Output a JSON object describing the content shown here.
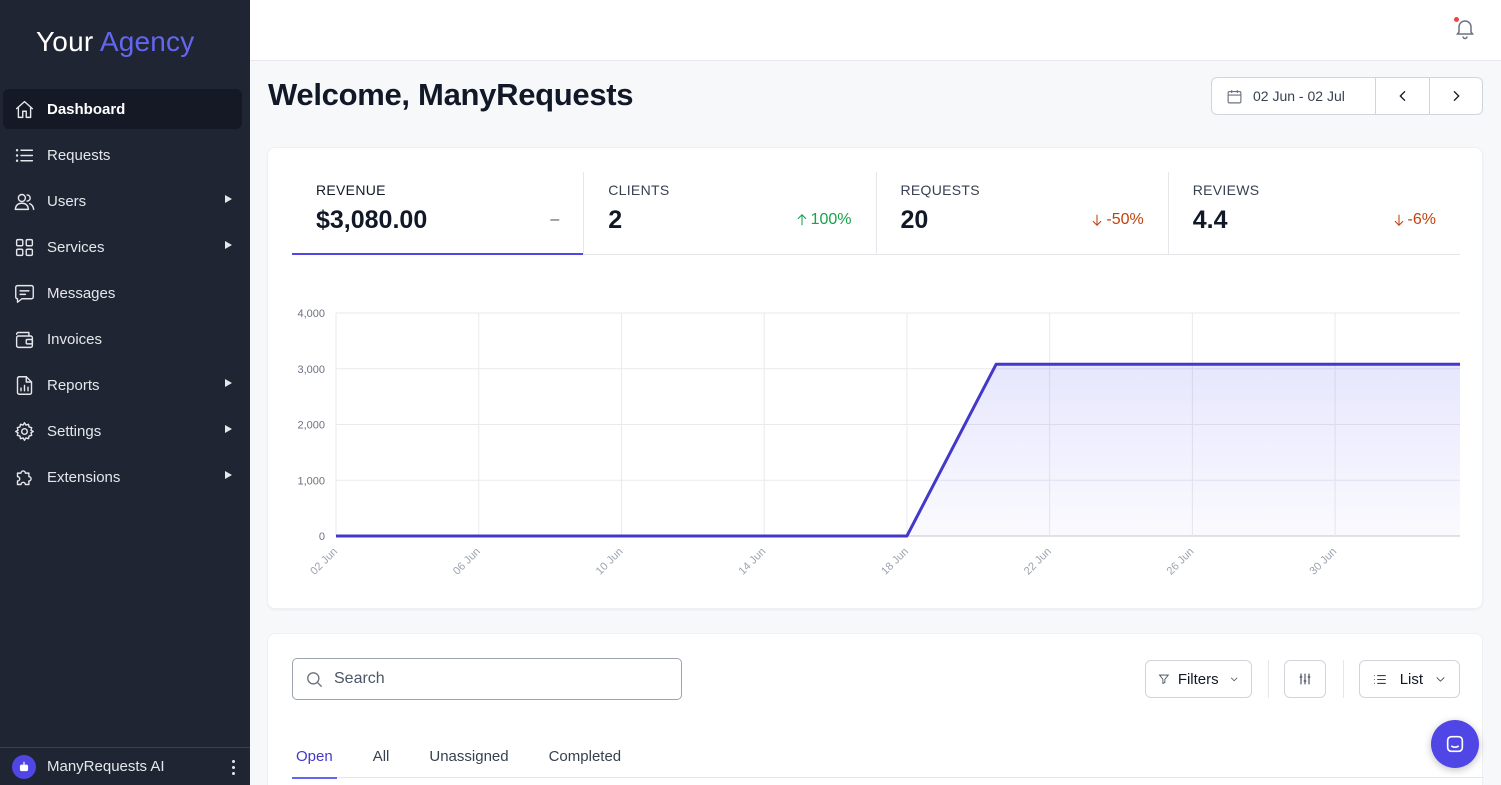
{
  "brand": {
    "word1": "Your",
    "word2": "Agency"
  },
  "sidebar": {
    "items": [
      {
        "label": "Dashboard",
        "icon": "home-icon",
        "active": true
      },
      {
        "label": "Requests",
        "icon": "list-icon"
      },
      {
        "label": "Users",
        "icon": "users-icon",
        "expandable": true
      },
      {
        "label": "Services",
        "icon": "grid-icon",
        "expandable": true
      },
      {
        "label": "Messages",
        "icon": "chat-icon"
      },
      {
        "label": "Invoices",
        "icon": "wallet-icon"
      },
      {
        "label": "Reports",
        "icon": "report-icon",
        "expandable": true
      },
      {
        "label": "Settings",
        "icon": "gear-icon",
        "expandable": true
      },
      {
        "label": "Extensions",
        "icon": "puzzle-icon",
        "expandable": true
      }
    ],
    "footer": {
      "label": "ManyRequests AI",
      "icon": "robot-icon"
    }
  },
  "topbar": {
    "notification_icon": "bell-icon",
    "has_unread": true
  },
  "page": {
    "title": "Welcome, ManyRequests"
  },
  "date_range": {
    "label": "02 Jun - 02 Jul"
  },
  "kpis": [
    {
      "label": "REVENUE",
      "value": "$3,080.00",
      "change": "–",
      "trend": "flat",
      "active": true
    },
    {
      "label": "CLIENTS",
      "value": "2",
      "change": "100%",
      "trend": "up"
    },
    {
      "label": "REQUESTS",
      "value": "20",
      "change": "-50%",
      "trend": "down"
    },
    {
      "label": "REVIEWS",
      "value": "4.4",
      "change": "-6%",
      "trend": "down"
    }
  ],
  "chart_data": {
    "type": "area",
    "x": [
      "02 Jun",
      "06 Jun",
      "10 Jun",
      "14 Jun",
      "18 Jun",
      "22 Jun",
      "26 Jun",
      "30 Jun"
    ],
    "x_days": [
      2,
      6,
      10,
      14,
      18,
      22,
      26,
      30
    ],
    "series": [
      {
        "points": [
          [
            2,
            0
          ],
          [
            18,
            0
          ],
          [
            20.5,
            3080
          ],
          [
            33.5,
            3080
          ]
        ]
      }
    ],
    "y_ticks": [
      "0",
      "1,000",
      "2,000",
      "3,000",
      "4,000"
    ],
    "ylim": [
      0,
      4000
    ],
    "xlim": [
      2,
      33.5
    ],
    "grid": true,
    "color": "#4338ca"
  },
  "requests": {
    "search_placeholder": "Search",
    "filters_label": "Filters",
    "view_label": "List",
    "tabs": [
      {
        "label": "Open",
        "active": true
      },
      {
        "label": "All"
      },
      {
        "label": "Unassigned"
      },
      {
        "label": "Completed"
      }
    ]
  }
}
